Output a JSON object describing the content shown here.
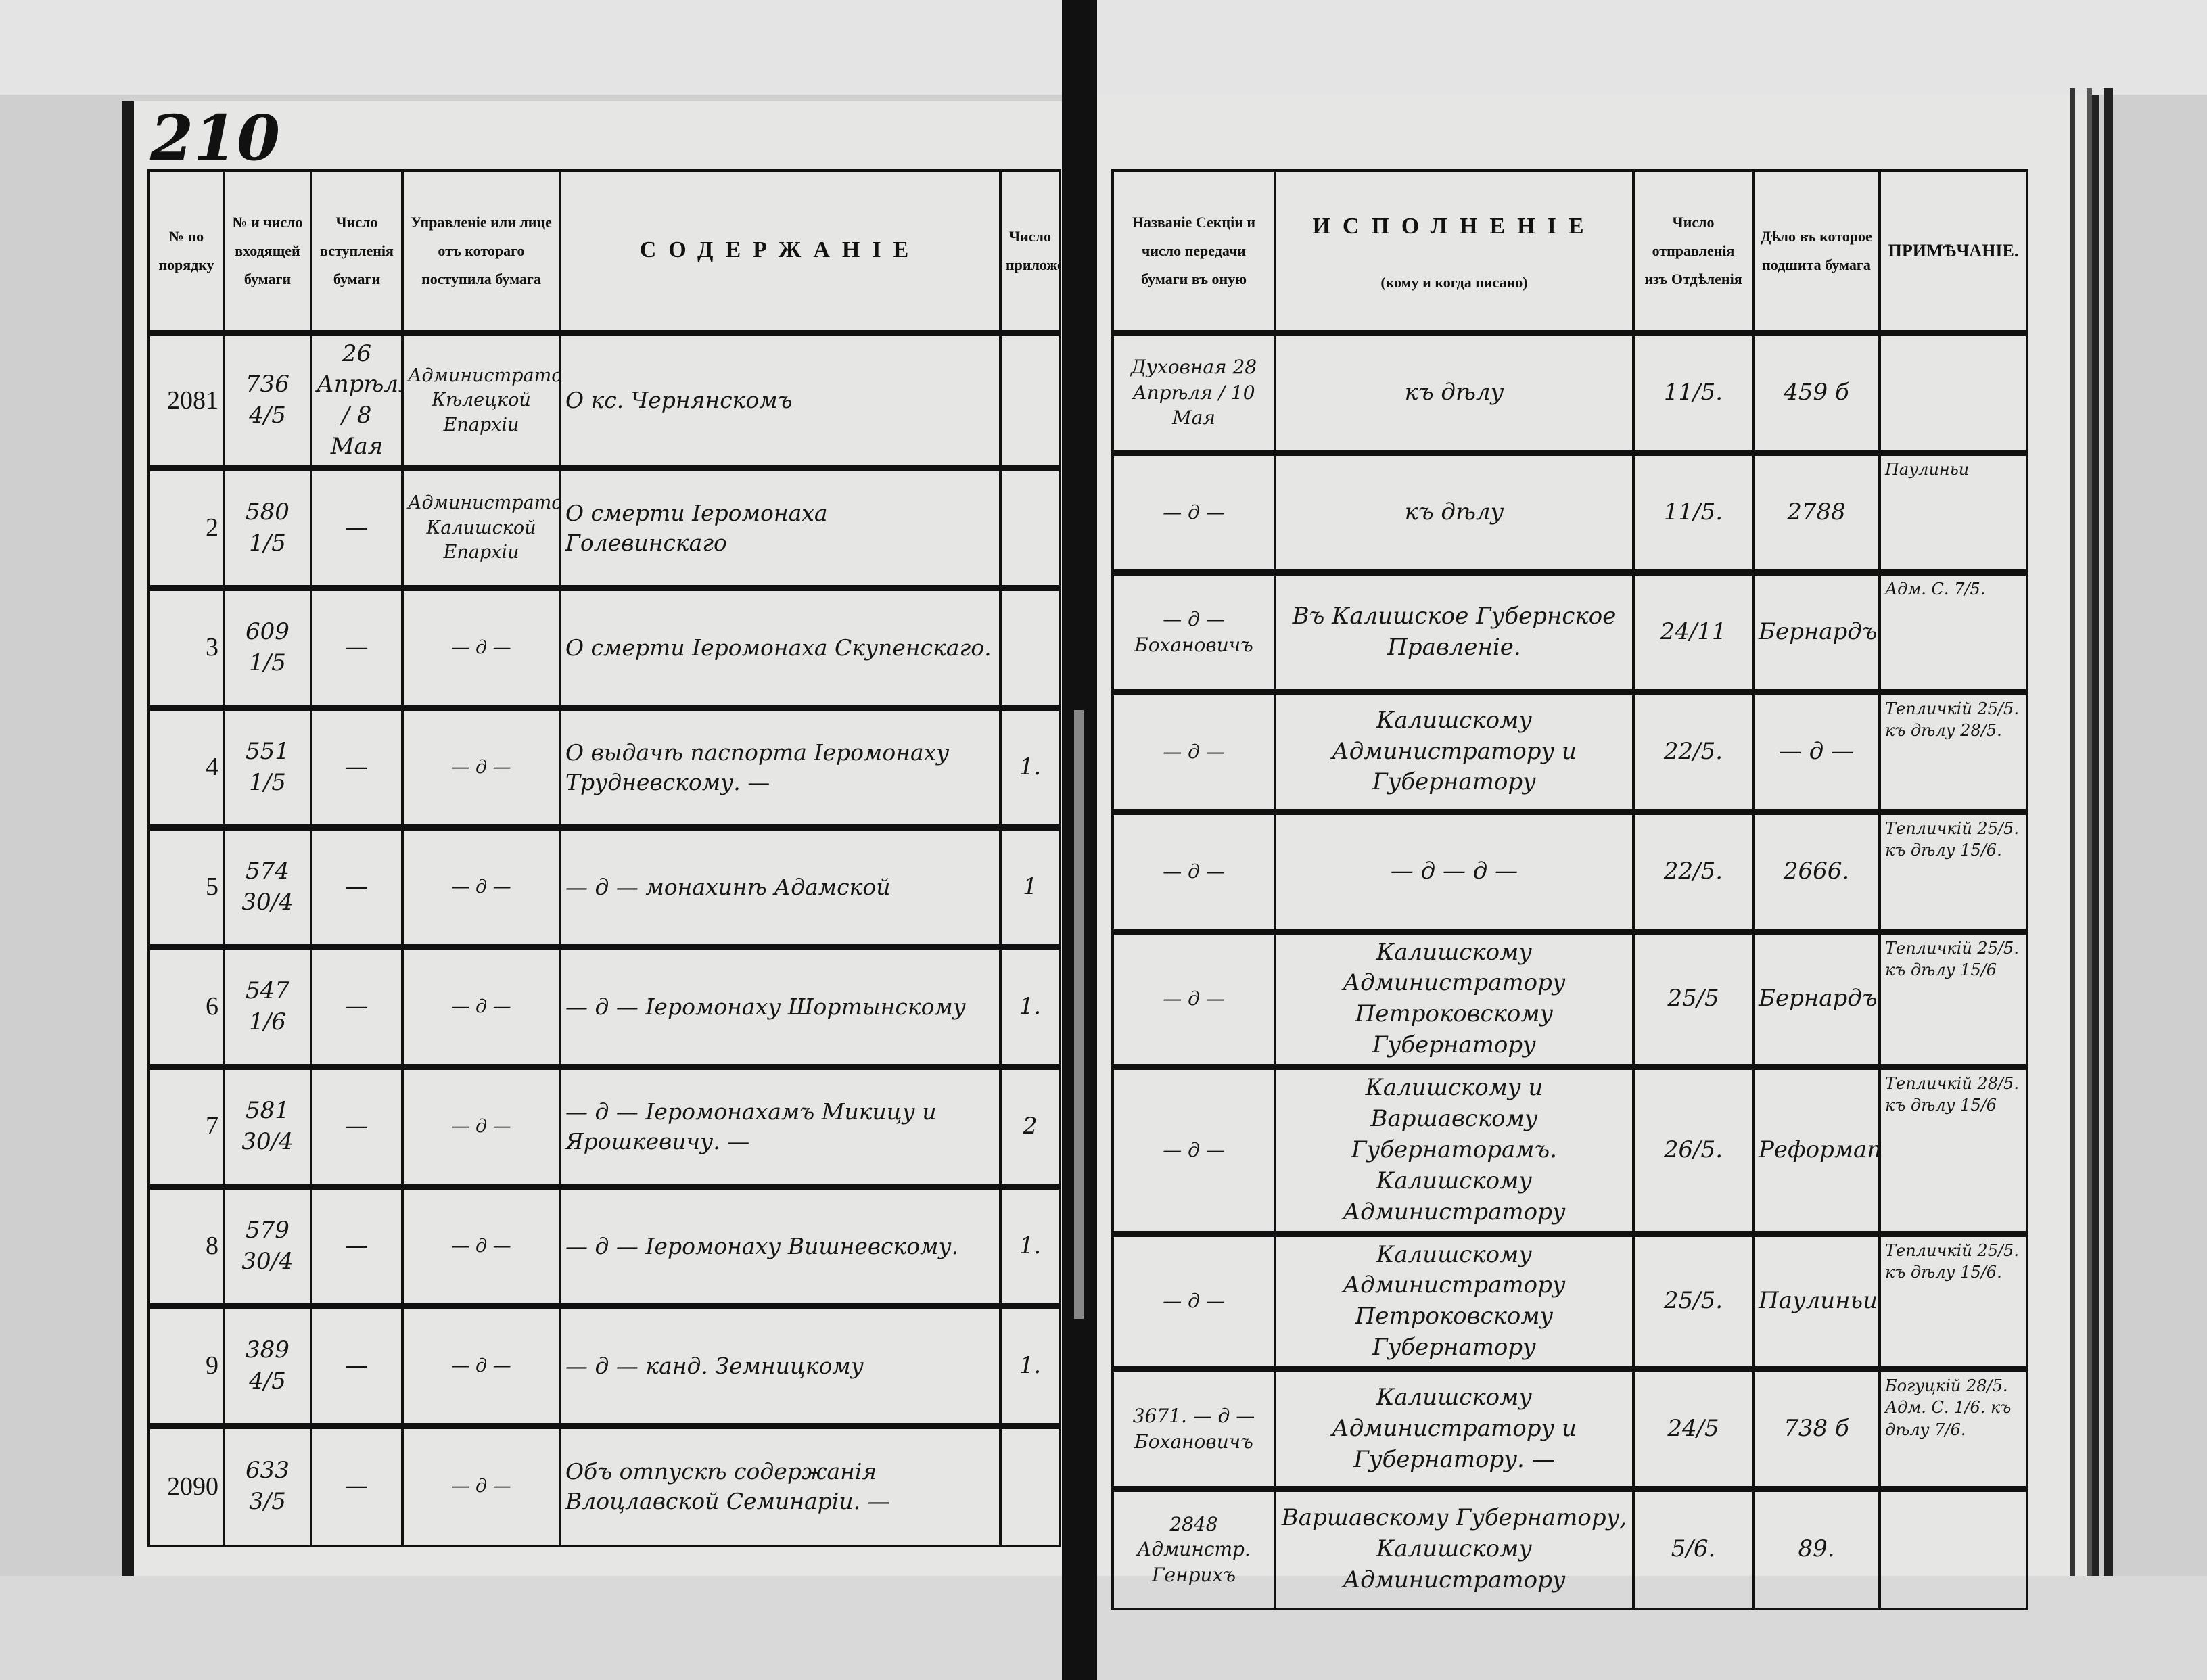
{
  "page_number": "210",
  "left_headers": [
    "№ по порядку",
    "№ и число входящей бумаги",
    "Число вступленія бумаги",
    "Управленіе или лице отъ котораго поступила бумага",
    "СОДЕРЖАНІЕ",
    "Число приложеній"
  ],
  "right_headers": {
    "section": "Названіе Секціи и число передачи бумаги въ оную",
    "execution_title": "ИСПОЛНЕНІЕ",
    "execution_sub": "(кому и когда писано)",
    "sent": "Число отправленія изъ Отдѣленія",
    "case": "Дѣло въ которое подшита бумага",
    "note": "ПРИМѢЧАНІЕ."
  },
  "rows": [
    {
      "no": "2081",
      "in_no": "736",
      "in_date": "4/5",
      "received": "26 Апрѣля / 8 Мая",
      "from": "Администратора Кѣлецкой Епархіи",
      "content": "О кс. Чернянскомъ",
      "attachments": "",
      "section": "Духовная 28 Апрѣля / 10 Мая",
      "execution": "къ дѣлу",
      "sent": "11/5.",
      "case": "459 б",
      "note": ""
    },
    {
      "no": "2",
      "in_no": "580",
      "in_date": "1/5",
      "received": "—",
      "from": "Администратора Калишской Епархіи",
      "content": "О смерти Іеромонаха Голевинскаго",
      "attachments": "",
      "section": "— д —",
      "execution": "къ дѣлу",
      "sent": "11/5.",
      "case": "2788",
      "note": "Паулиньи"
    },
    {
      "no": "3",
      "in_no": "609",
      "in_date": "1/5",
      "received": "—",
      "from": "— д —",
      "content": "О смерти Іеромонаха Скупенскаго.",
      "attachments": "",
      "section": "— д — Бохановичъ",
      "execution": "Въ Калишское Губернское Правленіе.",
      "sent": "24/11",
      "case": "Бернардъ",
      "note": "Адм. С. 7/5."
    },
    {
      "no": "4",
      "in_no": "551",
      "in_date": "1/5",
      "received": "—",
      "from": "— д —",
      "content": "О выдачѣ паспорта Іеромонаху Трудневскому. —",
      "attachments": "1.",
      "section": "— д —",
      "execution": "Калишскому Администратору и Губернатору",
      "sent": "22/5.",
      "case": "— д —",
      "note": "Тепличкій 25/5. къ дѣлу 28/5."
    },
    {
      "no": "5",
      "in_no": "574",
      "in_date": "30/4",
      "received": "—",
      "from": "— д —",
      "content": "— д — монахинѣ Адамской",
      "attachments": "1",
      "section": "— д —",
      "execution": "— д — д —",
      "sent": "22/5.",
      "case": "2666.",
      "note": "Тепличкій 25/5. къ дѣлу 15/6."
    },
    {
      "no": "6",
      "in_no": "547",
      "in_date": "1/6",
      "received": "—",
      "from": "— д —",
      "content": "— д — Іеромонаху Шортынскому",
      "attachments": "1.",
      "section": "— д —",
      "execution": "Калишскому Администратору Петроковскому Губернатору",
      "sent": "25/5",
      "case": "Бернардъ",
      "note": "Тепличкій 25/5. къ дѣлу 15/6"
    },
    {
      "no": "7",
      "in_no": "581",
      "in_date": "30/4",
      "received": "—",
      "from": "— д —",
      "content": "— д — Іеромонахамъ Микицу и Ярошкевичу. —",
      "attachments": "2",
      "section": "— д —",
      "execution": "Калишскому и Варшавскому Губернаторамъ. Калишскому Администратору",
      "sent": "26/5.",
      "case": "Реформатъ",
      "note": "Тепличкій 28/5. къ дѣлу 15/6"
    },
    {
      "no": "8",
      "in_no": "579",
      "in_date": "30/4",
      "received": "—",
      "from": "— д —",
      "content": "— д — Іеромонаху Вишневскому.",
      "attachments": "1.",
      "section": "— д —",
      "execution": "Калишскому Администратору Петроковскому Губернатору",
      "sent": "25/5.",
      "case": "Паулиньи",
      "note": "Тепличкій 25/5. къ дѣлу 15/6."
    },
    {
      "no": "9",
      "in_no": "389",
      "in_date": "4/5",
      "received": "—",
      "from": "— д —",
      "content": "— д — канд. Земницкому",
      "attachments": "1.",
      "section": "3671. — д — Бохановичъ",
      "execution": "Калишскому Администратору и Губернатору. —",
      "sent": "24/5",
      "case": "738 б",
      "note": "Богуцкій 28/5. Адм. С. 1/6. къ дѣлу 7/6."
    },
    {
      "no": "2090",
      "in_no": "633",
      "in_date": "3/5",
      "received": "—",
      "from": "— д —",
      "content": "Объ отпускѣ содержанія Влоцлавской Семинаріи. —",
      "attachments": "",
      "section": "2848 Админстр. Генрихъ",
      "execution": "Варшавскому Губернатору, Калишскому Администратору",
      "sent": "5/6.",
      "case": "89.",
      "note": ""
    }
  ]
}
